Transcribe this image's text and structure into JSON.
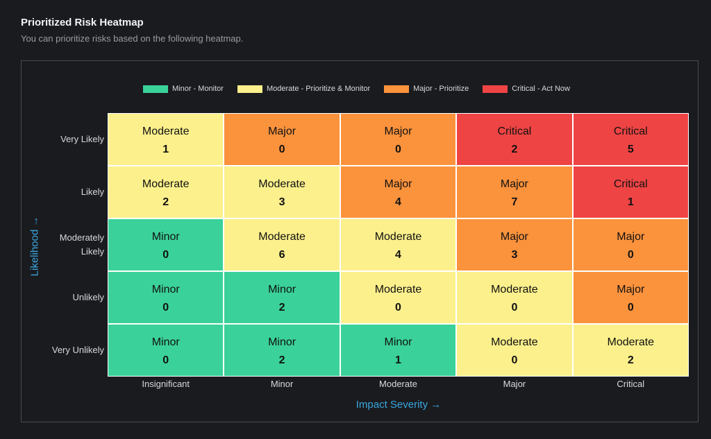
{
  "header": {
    "title": "Prioritized Risk Heatmap",
    "subtitle": "You can prioritize risks based on the following heatmap."
  },
  "legend": [
    {
      "label": "Minor - Monitor",
      "color": "#3ad29a"
    },
    {
      "label": "Moderate - Prioritize & Monitor",
      "color": "#fcf08c"
    },
    {
      "label": "Major - Prioritize",
      "color": "#fb923c"
    },
    {
      "label": "Critical - Act Now",
      "color": "#ef4444"
    }
  ],
  "chart_data": {
    "type": "heatmap",
    "xlabel": "Impact Severity →",
    "ylabel": "Likelihood →",
    "x_categories": [
      "Insignificant",
      "Minor",
      "Moderate",
      "Major",
      "Critical"
    ],
    "y_categories": [
      "Very Likely",
      "Likely",
      "Moderately Likely",
      "Unlikely",
      "Very Unlikely"
    ],
    "levels": [
      [
        "Moderate",
        "Major",
        "Major",
        "Critical",
        "Critical"
      ],
      [
        "Moderate",
        "Moderate",
        "Major",
        "Major",
        "Critical"
      ],
      [
        "Minor",
        "Moderate",
        "Moderate",
        "Major",
        "Major"
      ],
      [
        "Minor",
        "Minor",
        "Moderate",
        "Moderate",
        "Major"
      ],
      [
        "Minor",
        "Minor",
        "Minor",
        "Moderate",
        "Moderate"
      ]
    ],
    "counts": [
      [
        1,
        0,
        0,
        2,
        5
      ],
      [
        2,
        3,
        4,
        7,
        1
      ],
      [
        0,
        6,
        4,
        3,
        0
      ],
      [
        0,
        2,
        0,
        0,
        0
      ],
      [
        0,
        2,
        1,
        0,
        2
      ]
    ],
    "level_colors": {
      "Minor": "#3ad29a",
      "Moderate": "#fcf08c",
      "Major": "#fb923c",
      "Critical": "#ef4444"
    },
    "y_label_lines": [
      [
        "Very Likely"
      ],
      [
        "Likely"
      ],
      [
        "Moderately",
        "Likely"
      ],
      [
        "Unlikely"
      ],
      [
        "Very Unlikely"
      ]
    ]
  }
}
